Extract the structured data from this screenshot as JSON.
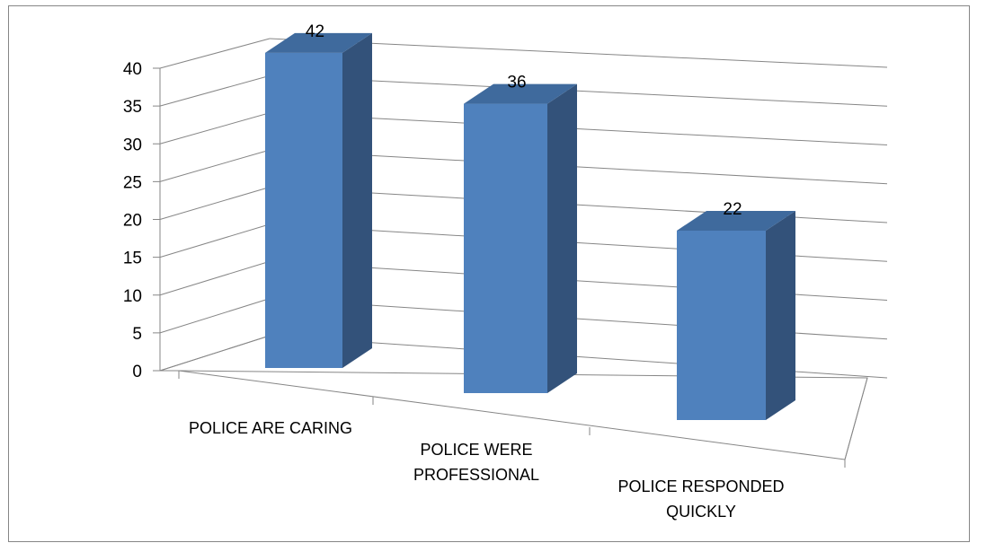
{
  "chart_data": {
    "type": "bar",
    "categories": [
      [
        "POLICE ARE CARING"
      ],
      [
        "POLICE WERE",
        "PROFESSIONAL"
      ],
      [
        "POLICE RESPONDED",
        "QUICKLY"
      ]
    ],
    "values": [
      42,
      36,
      22
    ],
    "ylim": [
      0,
      40
    ],
    "yticks": [
      0,
      5,
      10,
      15,
      20,
      25,
      30,
      35,
      40
    ],
    "title": "",
    "xlabel": "",
    "ylabel": "",
    "grid": true,
    "legend": "none",
    "three_d": true,
    "data_labels": true,
    "colors": {
      "bar_front": "#4F81BD",
      "bar_side": "#33527A",
      "bar_top": "#3F6A9D",
      "gridline": "#868686",
      "frame": "#868686"
    }
  }
}
